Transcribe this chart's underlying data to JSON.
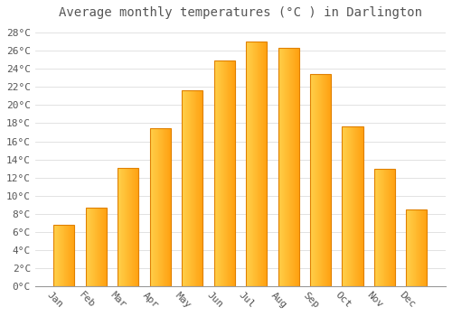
{
  "title": "Average monthly temperatures (°C ) in Darlington",
  "months": [
    "Jan",
    "Feb",
    "Mar",
    "Apr",
    "May",
    "Jun",
    "Jul",
    "Aug",
    "Sep",
    "Oct",
    "Nov",
    "Dec"
  ],
  "temperatures": [
    6.8,
    8.7,
    13.1,
    17.4,
    21.6,
    24.9,
    27.0,
    26.3,
    23.4,
    17.6,
    13.0,
    8.5
  ],
  "bar_color_left": "#FFD04A",
  "bar_color_right": "#FFA010",
  "background_color": "#FFFFFF",
  "plot_bg_color": "#FFFFFF",
  "grid_color": "#DDDDDD",
  "text_color": "#555555",
  "ylim": [
    0,
    29
  ],
  "ytick_max": 28,
  "ytick_step": 2,
  "title_fontsize": 10,
  "tick_fontsize": 8,
  "font_family": "monospace",
  "bar_width": 0.65,
  "xlabel_rotation": -45
}
